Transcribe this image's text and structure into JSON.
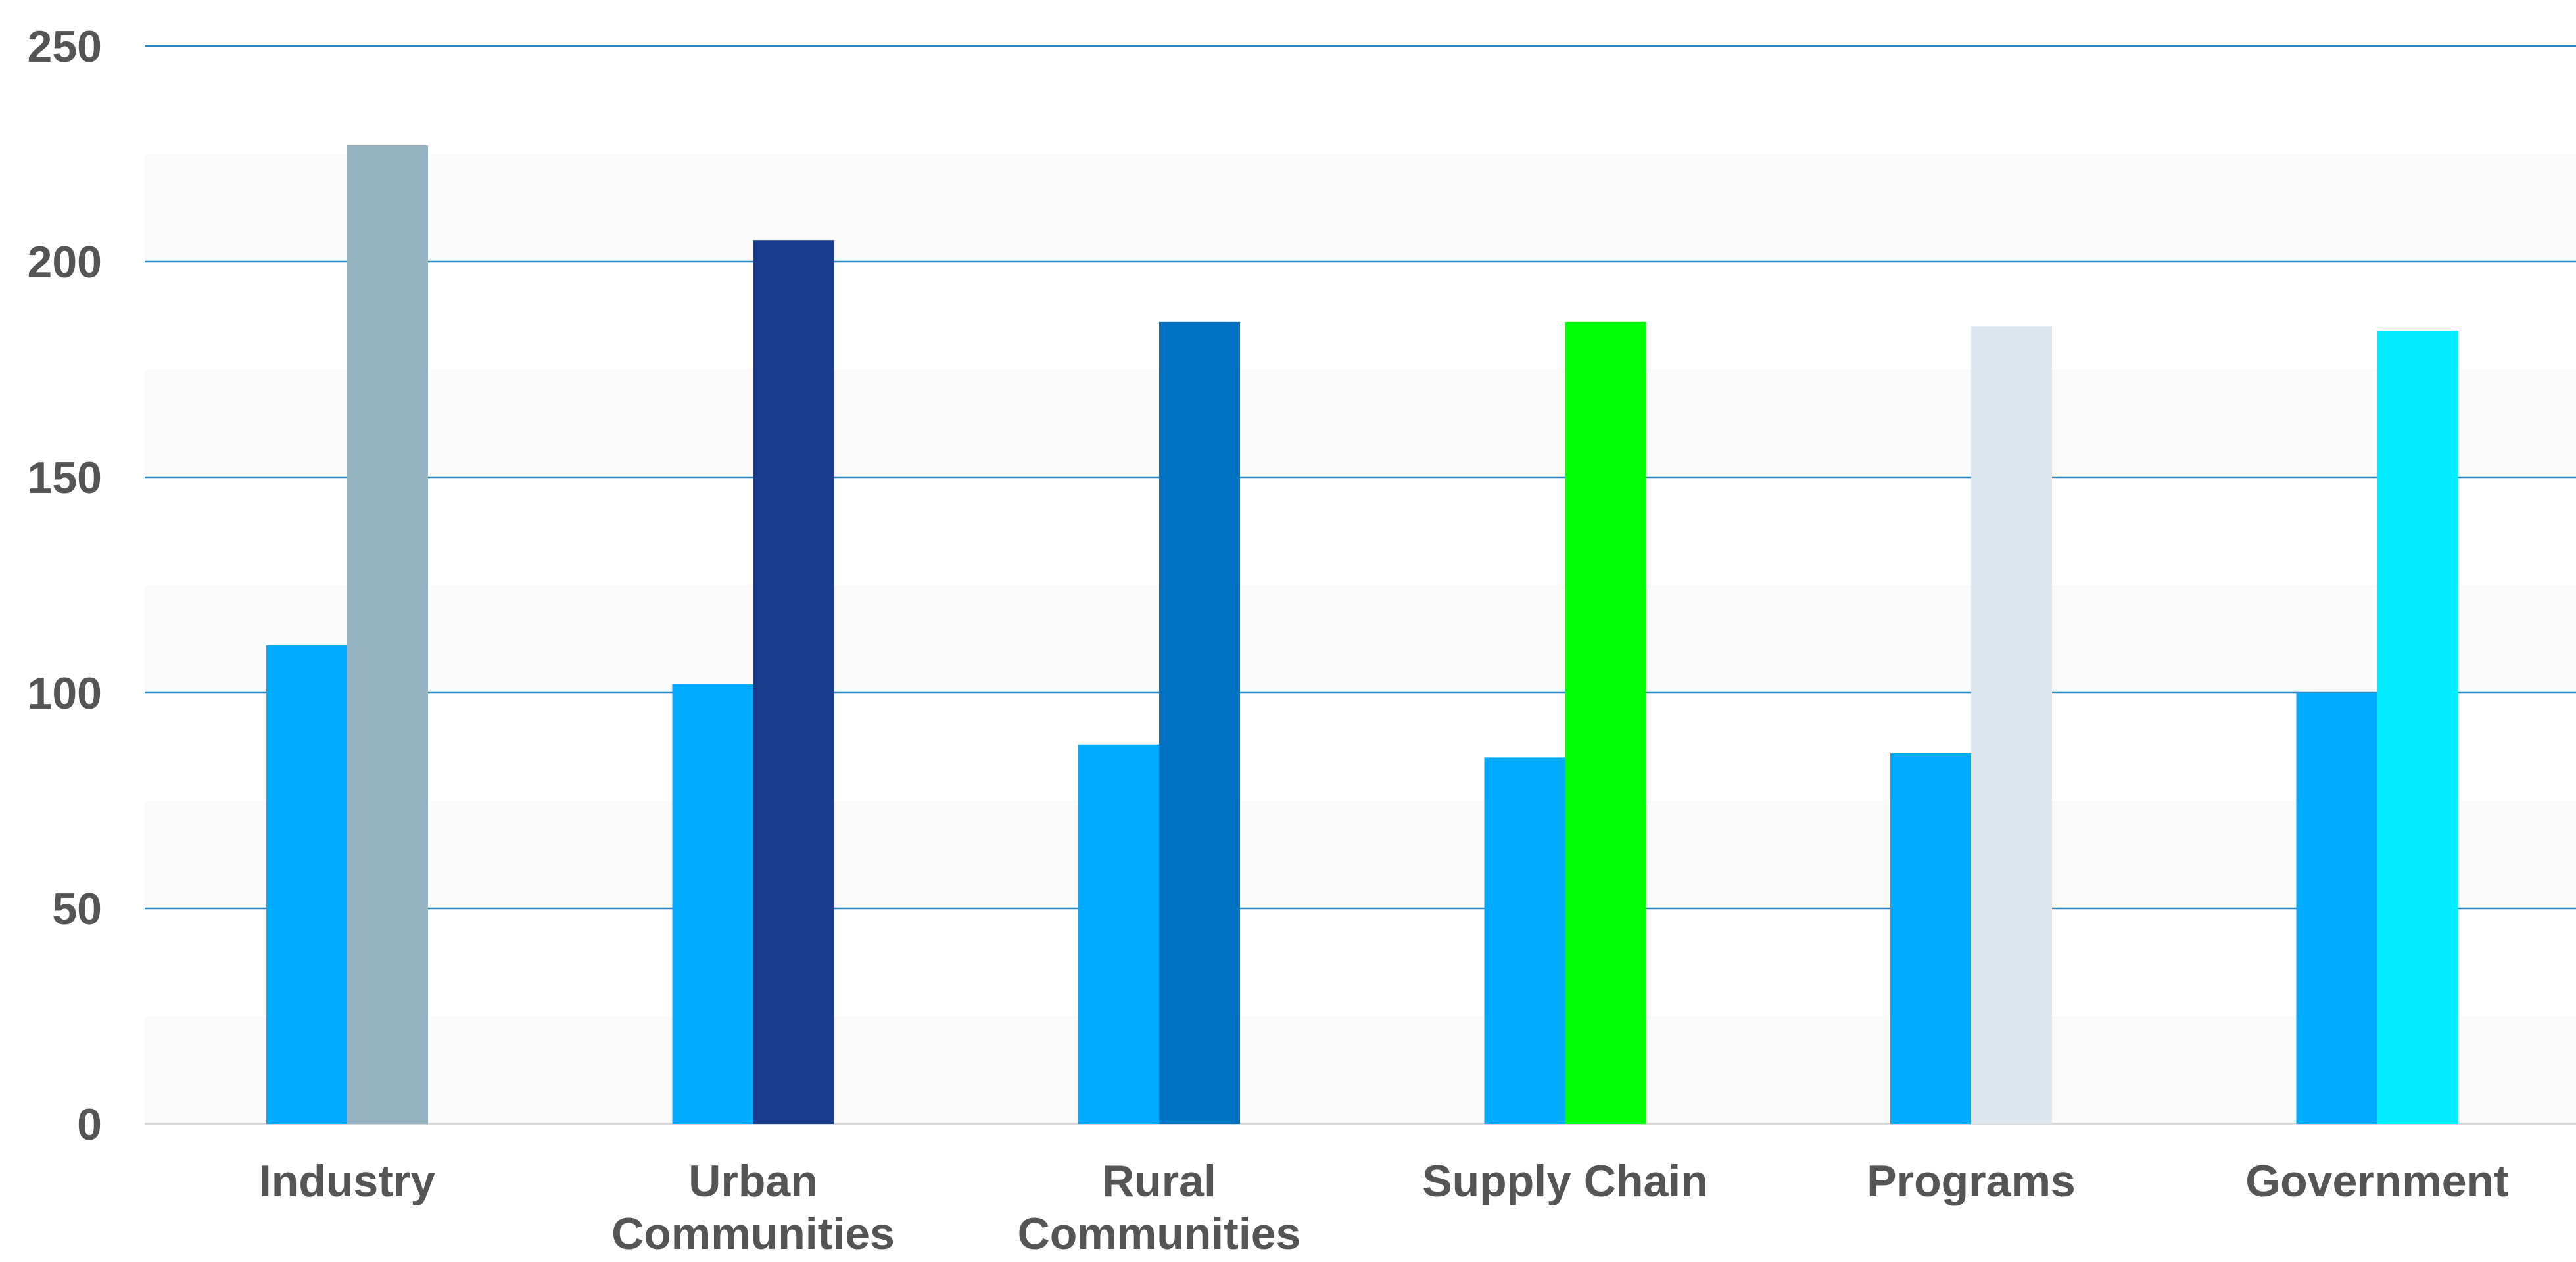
{
  "chart_data": {
    "type": "bar",
    "categories": [
      [
        "Industry"
      ],
      [
        "Urban",
        "Communities"
      ],
      [
        "Rural",
        "Communities"
      ],
      [
        "Supply Chain"
      ],
      [
        "Programs"
      ],
      [
        "Government"
      ]
    ],
    "series": [
      {
        "values": [
          111,
          102,
          88,
          85,
          86,
          100
        ],
        "colors": [
          "#00AAFF",
          "#00AAFF",
          "#00AAFF",
          "#00AAFF",
          "#00AAFF",
          "#00AAFF"
        ]
      },
      {
        "values": [
          227,
          205,
          186,
          186,
          185,
          184
        ],
        "colors": [
          "#95B3C1",
          "#1A3A8A",
          "#0070C0",
          "#00FF00",
          "#DCE6EF",
          "#00EEFF"
        ]
      }
    ],
    "yticks": [
      0,
      50,
      100,
      150,
      200,
      250
    ],
    "ylim": [
      0,
      250
    ],
    "grid": true,
    "legend": "none",
    "title": "",
    "xlabel": "",
    "ylabel": "",
    "colors": {
      "gridline": "#2E86C1",
      "baseline": "#D9D9D9",
      "text": "#555555"
    }
  }
}
